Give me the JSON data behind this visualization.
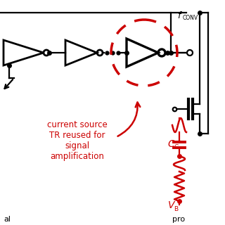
{
  "bg_color": "#ffffff",
  "black": "#000000",
  "red": "#cc0000",
  "annotation": "current source\nTR reused for\nsignal\namplification",
  "bottom_left": "al",
  "bottom_right": "pro"
}
